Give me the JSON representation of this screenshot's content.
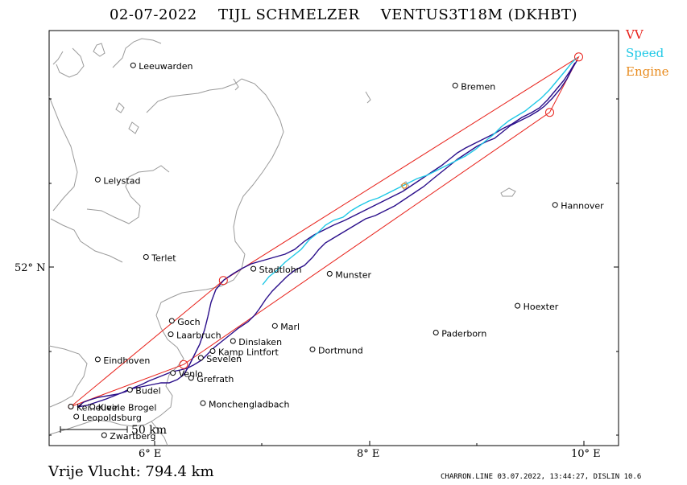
{
  "header": {
    "date": "02-07-2022",
    "pilot": "TIJL SCHMELZER",
    "glider": "VENTUS3T18M (DKHBT)"
  },
  "legend": [
    {
      "label": "VV",
      "color": "#e8231c"
    },
    {
      "label": "Speed",
      "color": "#1ec8e6"
    },
    {
      "label": "Engine",
      "color": "#e88a1c"
    }
  ],
  "axes": {
    "lat_label": "52° N",
    "lon_labels": [
      {
        "label": "6° E",
        "lon": 6
      },
      {
        "label": "8° E",
        "lon": 8
      },
      {
        "label": "10° E",
        "lon": 10
      }
    ]
  },
  "scale_bar": {
    "label": "50 km"
  },
  "summary": {
    "label": "Vrije Vlucht:",
    "value": "794.4 km"
  },
  "footer": "CHARRON.LINE 03.07.2022, 13:44:27, DISLIN 10.6",
  "places": [
    {
      "name": "Leeuwarden",
      "lon": 5.8,
      "lat": 53.2
    },
    {
      "name": "Bremen",
      "lon": 8.8,
      "lat": 53.08
    },
    {
      "name": "Lelystad",
      "lon": 5.47,
      "lat": 52.52
    },
    {
      "name": "Hannover",
      "lon": 9.73,
      "lat": 52.37
    },
    {
      "name": "Terlet",
      "lon": 5.92,
      "lat": 52.06
    },
    {
      "name": "Stadtlohn",
      "lon": 6.92,
      "lat": 51.99
    },
    {
      "name": "Munster",
      "lon": 7.63,
      "lat": 51.96
    },
    {
      "name": "Hoexter",
      "lon": 9.38,
      "lat": 51.77
    },
    {
      "name": "Goch",
      "lon": 6.16,
      "lat": 51.68
    },
    {
      "name": "Marl",
      "lon": 7.12,
      "lat": 51.65
    },
    {
      "name": "Laarbruch",
      "lon": 6.15,
      "lat": 51.6
    },
    {
      "name": "Dinslaken",
      "lon": 6.73,
      "lat": 51.56
    },
    {
      "name": "Paderborn",
      "lon": 8.62,
      "lat": 51.61
    },
    {
      "name": "Kamp Lintfort",
      "lon": 6.54,
      "lat": 51.5
    },
    {
      "name": "Dortmund",
      "lon": 7.47,
      "lat": 51.51
    },
    {
      "name": "Sevelen",
      "lon": 6.43,
      "lat": 51.46
    },
    {
      "name": "Eindhoven",
      "lon": 5.47,
      "lat": 51.45
    },
    {
      "name": "Venlo",
      "lon": 6.17,
      "lat": 51.37
    },
    {
      "name": "Grefrath",
      "lon": 6.34,
      "lat": 51.34
    },
    {
      "name": "Budel",
      "lon": 5.77,
      "lat": 51.27
    },
    {
      "name": "Monchengladbach",
      "lon": 6.45,
      "lat": 51.19
    },
    {
      "name": "Keiheuvel",
      "lon": 5.22,
      "lat": 51.17
    },
    {
      "name": "Kleine Brogel",
      "lon": 5.42,
      "lat": 51.17
    },
    {
      "name": "Leopoldsburg",
      "lon": 5.27,
      "lat": 51.11
    },
    {
      "name": "Zwartberg",
      "lon": 5.53,
      "lat": 51.0
    }
  ],
  "turnpoints": [
    {
      "lon": 5.22,
      "lat": 51.17
    },
    {
      "lon": 6.64,
      "lat": 51.92
    },
    {
      "lon": 9.95,
      "lat": 53.25
    },
    {
      "lon": 9.68,
      "lat": 52.92
    },
    {
      "lon": 6.27,
      "lat": 51.42
    }
  ]
}
